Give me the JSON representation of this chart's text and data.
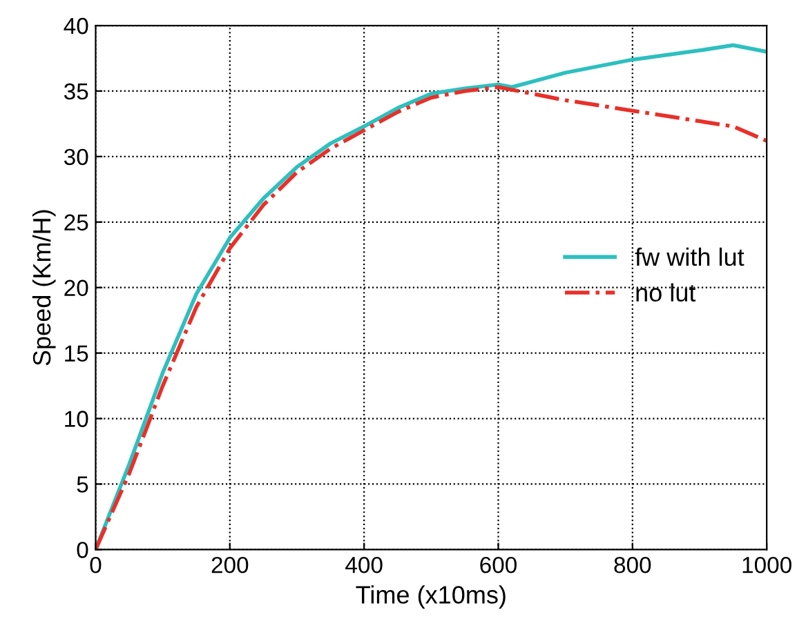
{
  "chart_data": {
    "type": "line",
    "xlabel": "Time (x10ms)",
    "ylabel": "Speed (Km/H)",
    "xlim": [
      0,
      1000
    ],
    "ylim": [
      0,
      40
    ],
    "xticks": [
      0,
      200,
      400,
      600,
      800,
      1000
    ],
    "yticks": [
      0,
      5,
      10,
      15,
      20,
      25,
      30,
      35,
      40
    ],
    "grid": true,
    "legend": "right",
    "marker": "none",
    "series": [
      {
        "name": "fw with lut",
        "color": "#2ebfbf",
        "line_style": "solid",
        "x": [
          0,
          50,
          100,
          150,
          200,
          250,
          300,
          350,
          400,
          450,
          500,
          550,
          600,
          620,
          700,
          800,
          900,
          950,
          1000
        ],
        "values": [
          0,
          6.5,
          13.5,
          19.5,
          23.8,
          26.8,
          29.2,
          31,
          32.3,
          33.7,
          34.8,
          35.2,
          35.5,
          35.3,
          36.4,
          37.4,
          38.1,
          38.5,
          38
        ]
      },
      {
        "name": "no lut",
        "color": "#e8302a",
        "line_style": "dashdot",
        "x": [
          0,
          50,
          100,
          150,
          200,
          250,
          300,
          350,
          400,
          450,
          500,
          550,
          600,
          700,
          800,
          900,
          950,
          1000
        ],
        "values": [
          0,
          5.8,
          12.5,
          18.5,
          23,
          26.3,
          28.8,
          30.6,
          32,
          33.4,
          34.5,
          35,
          35.3,
          34.3,
          33.5,
          32.7,
          32.3,
          31.2
        ]
      }
    ]
  }
}
